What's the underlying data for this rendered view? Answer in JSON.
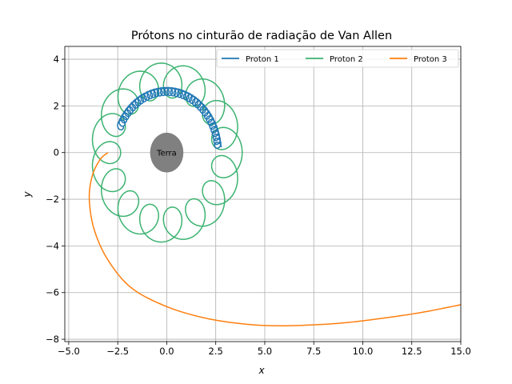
{
  "chart_data": {
    "type": "line",
    "title": "Prótons no cinturão de radiação de Van Allen",
    "xlabel": "x",
    "ylabel": "y",
    "xlim": [
      -5.2,
      15.0
    ],
    "ylim": [
      -8.1,
      4.55
    ],
    "xticks": [
      -5.0,
      -2.5,
      0.0,
      2.5,
      5.0,
      7.5,
      10.0,
      12.5,
      15.0
    ],
    "xtick_labels": [
      "−5.0",
      "−2.5",
      "0.0",
      "2.5",
      "5.0",
      "7.5",
      "10.0",
      "12.5",
      "15.0"
    ],
    "yticks": [
      -8,
      -6,
      -4,
      -2,
      0,
      2,
      4
    ],
    "ytick_labels": [
      "−8",
      "−6",
      "−4",
      "−2",
      "0",
      "2",
      "4"
    ],
    "grid": true,
    "legend_position": "top-right",
    "earth": {
      "label": "Terra",
      "center": [
        0,
        0
      ],
      "rx": 0.85,
      "ry": 0.85,
      "color": "#808080"
    },
    "series": [
      {
        "name": "Proton 1",
        "color": "#1f77b4",
        "kind": "guiding-center-spiral",
        "guiding_radius": 2.62,
        "gyro_radius": 0.17,
        "angle_start_deg": 5,
        "angle_end_deg": 155,
        "loops": 40
      },
      {
        "name": "Proton 2",
        "color": "#3cb371",
        "kind": "guiding-center-spiral",
        "guiding_radius": 3.1,
        "gyro_radius": 0.75,
        "angle_start_deg": 0,
        "angle_end_deg": 1080,
        "loops": 48
      },
      {
        "name": "Proton 3",
        "color": "#ff7f0e",
        "kind": "open-trajectory",
        "points": [
          [
            -3.0,
            0.0
          ],
          [
            -3.4,
            -0.3
          ],
          [
            -3.8,
            -1.0
          ],
          [
            -3.95,
            -2.0
          ],
          [
            -3.7,
            -3.3
          ],
          [
            -3.0,
            -4.6
          ],
          [
            -1.8,
            -5.8
          ],
          [
            0.0,
            -6.6
          ],
          [
            2.0,
            -7.1
          ],
          [
            4.0,
            -7.35
          ],
          [
            5.5,
            -7.42
          ],
          [
            7.0,
            -7.4
          ],
          [
            9.0,
            -7.3
          ],
          [
            11.0,
            -7.1
          ],
          [
            13.0,
            -6.85
          ],
          [
            15.0,
            -6.52
          ]
        ]
      }
    ]
  }
}
